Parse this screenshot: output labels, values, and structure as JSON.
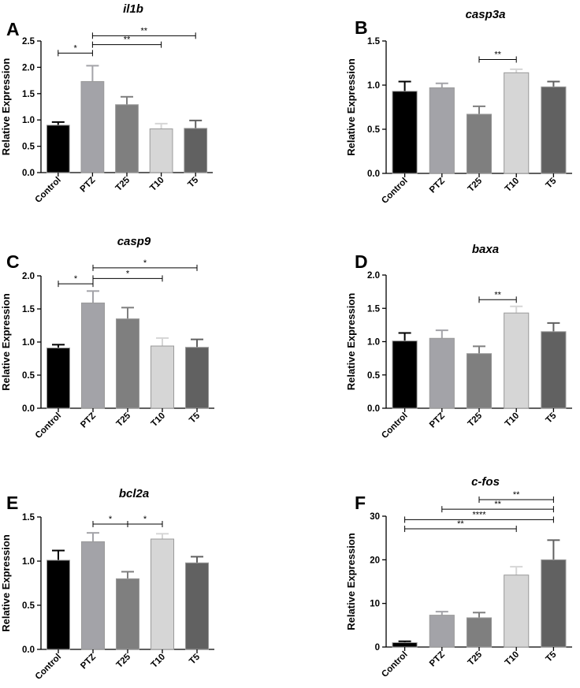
{
  "colors": {
    "Control": "#000000",
    "PTZ": "#a3a3a8",
    "T25": "#7f7f7f",
    "T10": "#d6d6d6",
    "T5": "#616161"
  },
  "chart_data": [
    {
      "type": "bar",
      "panel": "A",
      "title": "il1b",
      "ylabel": "Relative Expression",
      "categories": [
        "Control",
        "PTZ",
        "T25",
        "T10",
        "T5"
      ],
      "values": [
        0.9,
        1.73,
        1.29,
        0.83,
        0.84
      ],
      "errors": [
        0.06,
        0.3,
        0.15,
        0.1,
        0.15
      ],
      "ylim": [
        0,
        2.5
      ],
      "yticks": [
        "0.0",
        "0.5",
        "1.0",
        "1.5",
        "2.0",
        "2.5"
      ],
      "significance": [
        {
          "from": 0,
          "to": 1,
          "label": "*",
          "y": 2.27
        },
        {
          "from": 1,
          "to": 3,
          "label": "**",
          "y": 2.43
        },
        {
          "from": 1,
          "to": 4,
          "label": "**",
          "y": 2.6
        }
      ]
    },
    {
      "type": "bar",
      "panel": "B",
      "title": "casp3a",
      "ylabel": "Relative Expression",
      "categories": [
        "Control",
        "PTZ",
        "T25",
        "T10",
        "T5"
      ],
      "values": [
        0.93,
        0.97,
        0.67,
        1.14,
        0.98
      ],
      "errors": [
        0.11,
        0.05,
        0.09,
        0.04,
        0.06
      ],
      "ylim": [
        0,
        1.5
      ],
      "yticks": [
        "0.0",
        "0.5",
        "1.0",
        "1.5"
      ],
      "significance": [
        {
          "from": 2,
          "to": 3,
          "label": "**",
          "y": 1.29
        }
      ]
    },
    {
      "type": "bar",
      "panel": "C",
      "title": "casp9",
      "ylabel": "Relative Expression",
      "categories": [
        "Control",
        "PTZ",
        "T25",
        "T10",
        "T5"
      ],
      "values": [
        0.91,
        1.59,
        1.35,
        0.94,
        0.92
      ],
      "errors": [
        0.05,
        0.18,
        0.17,
        0.12,
        0.12
      ],
      "ylim": [
        0,
        2.0
      ],
      "yticks": [
        "0.0",
        "0.5",
        "1.0",
        "1.5",
        "2.0"
      ],
      "significance": [
        {
          "from": 0,
          "to": 1,
          "label": "*",
          "y": 1.88
        },
        {
          "from": 1,
          "to": 3,
          "label": "*",
          "y": 1.96
        },
        {
          "from": 1,
          "to": 4,
          "label": "*",
          "y": 2.12
        }
      ]
    },
    {
      "type": "bar",
      "panel": "D",
      "title": "baxa",
      "ylabel": "Relative Expression",
      "categories": [
        "Control",
        "PTZ",
        "T25",
        "T10",
        "T5"
      ],
      "values": [
        1.01,
        1.05,
        0.82,
        1.43,
        1.15
      ],
      "errors": [
        0.12,
        0.12,
        0.11,
        0.1,
        0.13
      ],
      "ylim": [
        0,
        2.0
      ],
      "yticks": [
        "0.0",
        "0.5",
        "1.0",
        "1.5",
        "2.0"
      ],
      "significance": [
        {
          "from": 2,
          "to": 3,
          "label": "**",
          "y": 1.63
        }
      ]
    },
    {
      "type": "bar",
      "panel": "E",
      "title": "bcl2a",
      "ylabel": "Relative Expression",
      "categories": [
        "Control",
        "PTZ",
        "T25",
        "T10",
        "T5"
      ],
      "values": [
        1.01,
        1.22,
        0.8,
        1.25,
        0.98
      ],
      "errors": [
        0.11,
        0.1,
        0.08,
        0.06,
        0.07
      ],
      "ylim": [
        0,
        1.5
      ],
      "yticks": [
        "0.0",
        "0.5",
        "1.0",
        "1.5"
      ],
      "significance": [
        {
          "from": 1,
          "to": 2,
          "label": "*",
          "y": 1.42
        },
        {
          "from": 2,
          "to": 3,
          "label": "*",
          "y": 1.42
        }
      ]
    },
    {
      "type": "bar",
      "panel": "F",
      "title": "c-fos",
      "ylabel": "Relative Expression",
      "categories": [
        "Control",
        "PTZ",
        "T25",
        "T10",
        "T5"
      ],
      "values": [
        1.0,
        7.3,
        6.7,
        16.5,
        20.0
      ],
      "errors": [
        0.3,
        0.8,
        1.2,
        1.9,
        4.5
      ],
      "ylim": [
        0,
        30
      ],
      "yticks": [
        "0",
        "10",
        "20",
        "30"
      ],
      "significance": [
        {
          "from": 0,
          "to": 3,
          "label": "**",
          "y": 27.1
        },
        {
          "from": 0,
          "to": 4,
          "label": "****",
          "y": 29.2
        },
        {
          "from": 1,
          "to": 4,
          "label": "**",
          "y": 31.6
        },
        {
          "from": 2,
          "to": 4,
          "label": "**",
          "y": 33.8
        }
      ]
    }
  ]
}
